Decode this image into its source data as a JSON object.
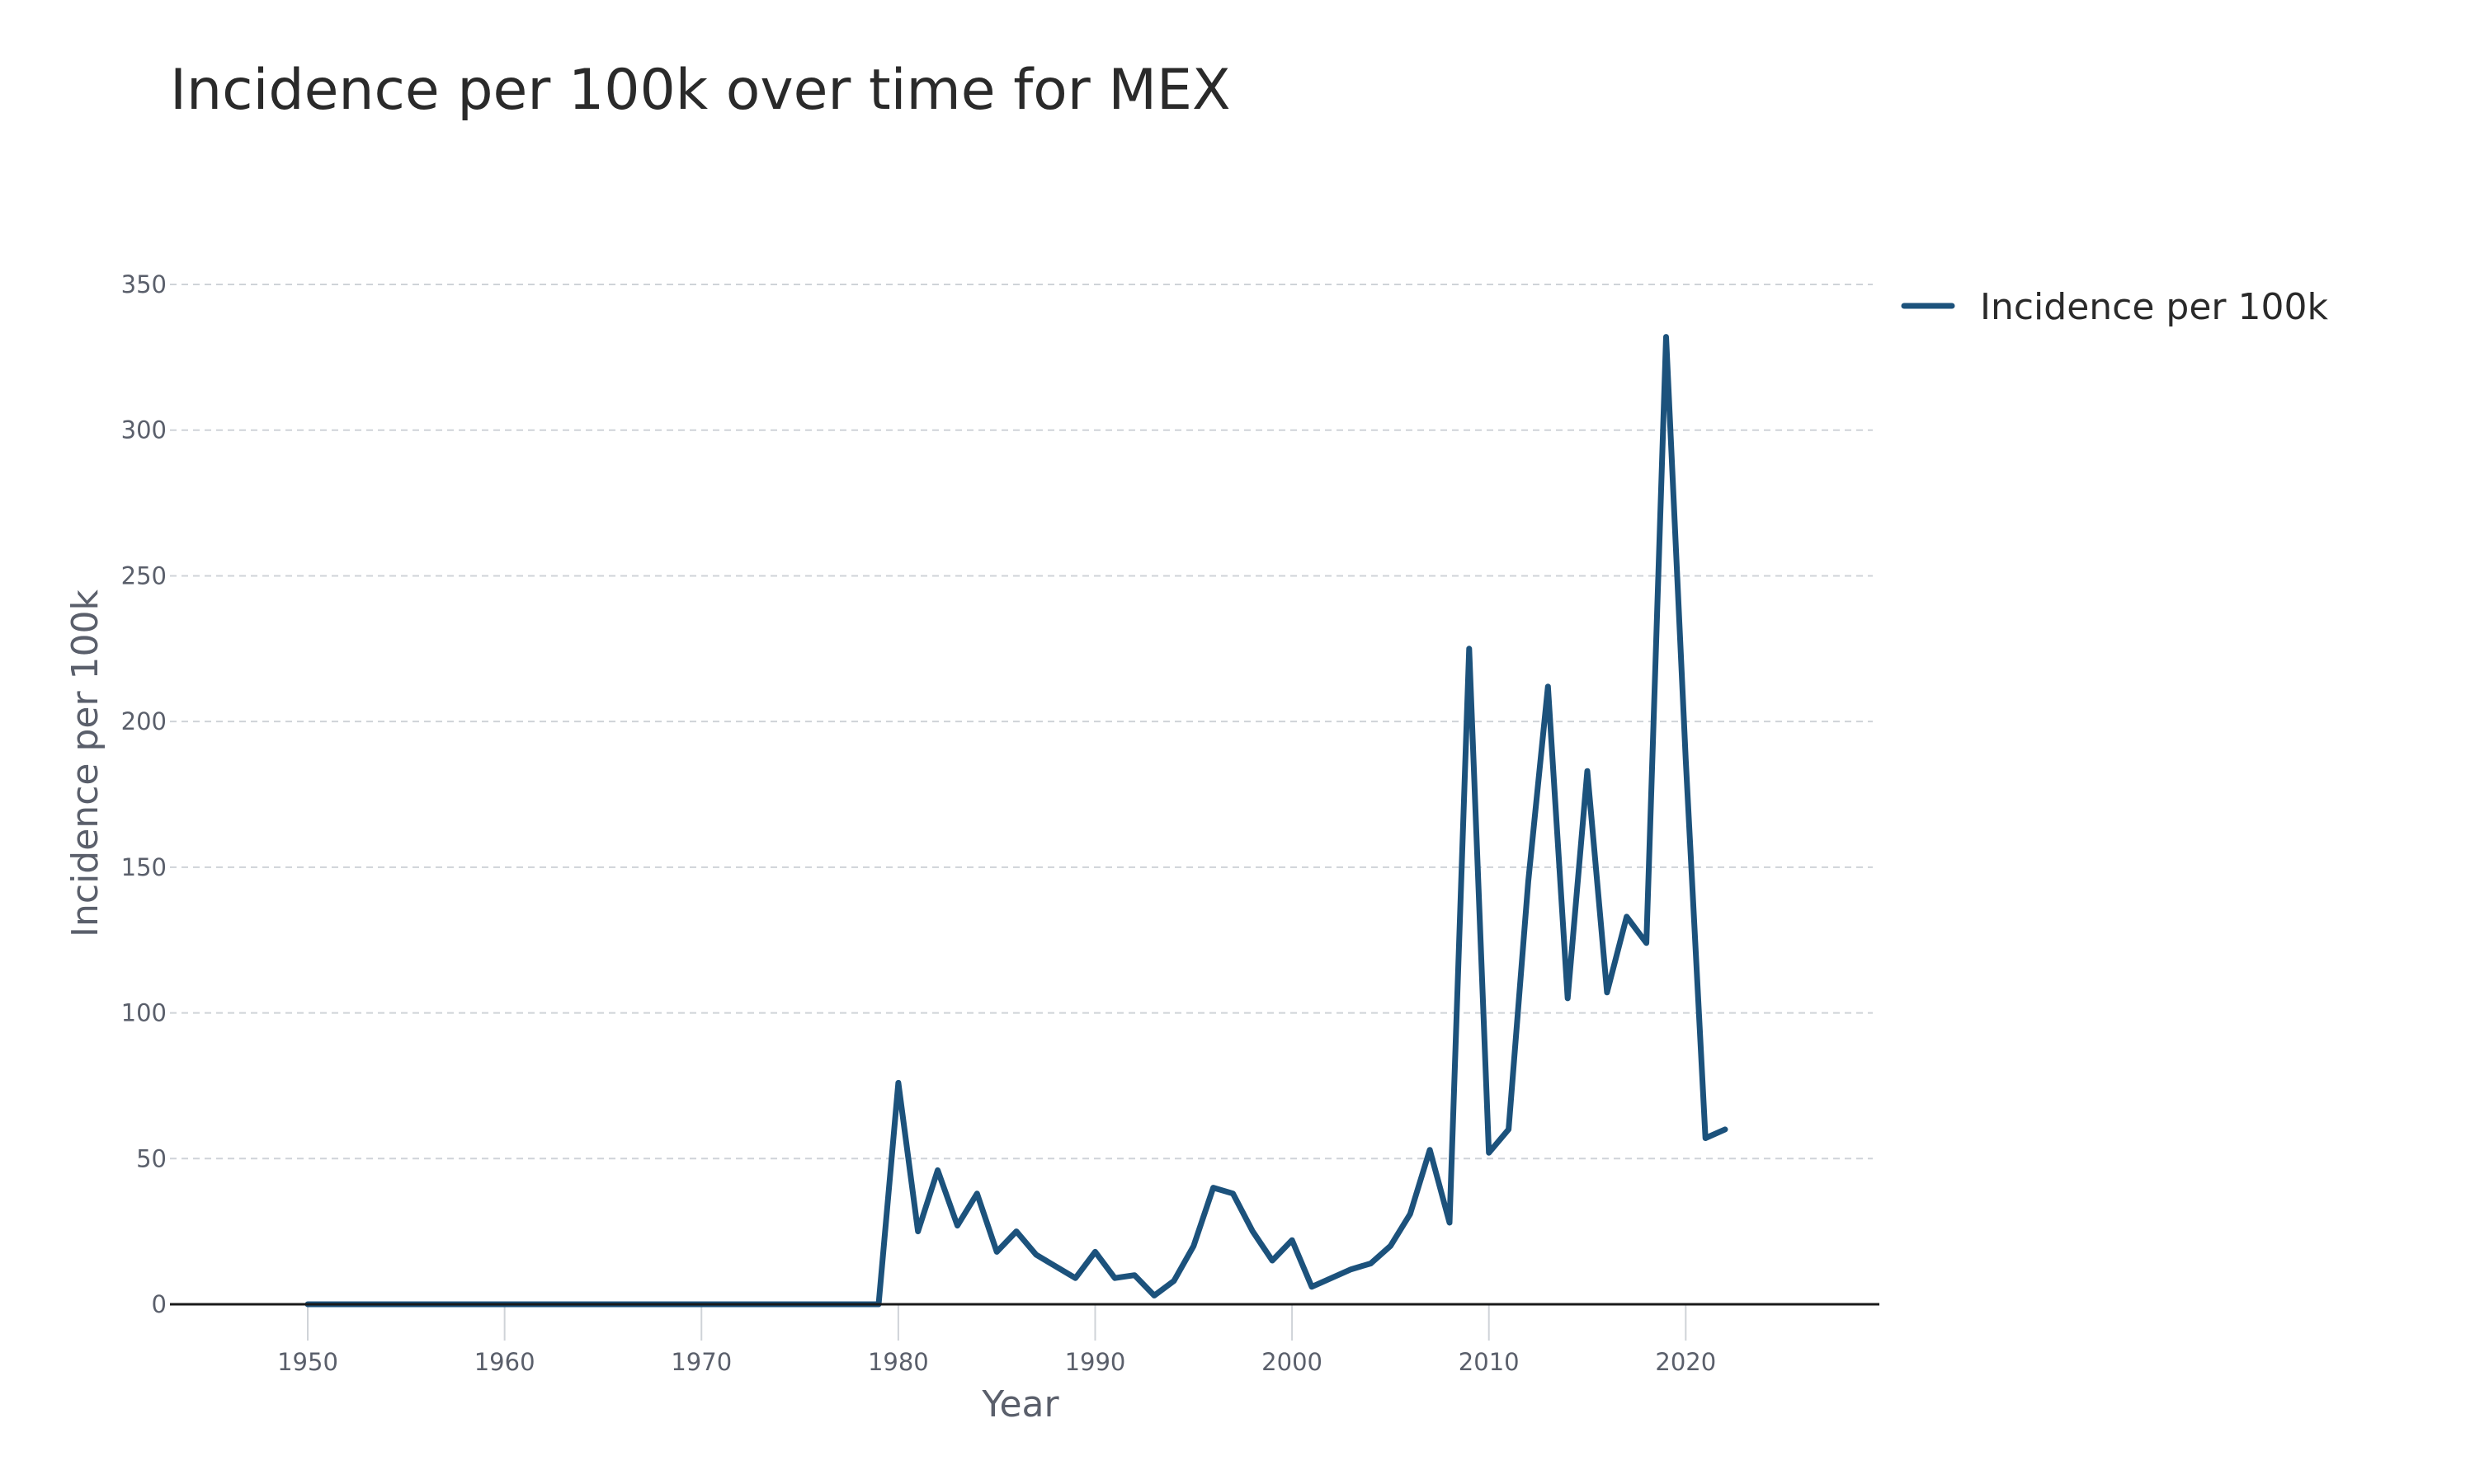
{
  "chart_data": {
    "type": "line",
    "title": "Incidence per 100k over time for MEX",
    "xlabel": "Year",
    "ylabel": "Incidence per 100k",
    "xlim": [
      1943,
      2029.5
    ],
    "ylim": [
      0,
      365
    ],
    "x_ticks": [
      1950,
      1960,
      1970,
      1980,
      1990,
      2000,
      2010,
      2020
    ],
    "y_ticks": [
      0,
      50,
      100,
      150,
      200,
      250,
      300,
      350
    ],
    "grid": "horizontal dashed",
    "legend_position": "top-right outside plot",
    "series": [
      {
        "name": "Incidence per 100k",
        "color": "#1c527c",
        "x": [
          1950,
          1951,
          1952,
          1953,
          1954,
          1955,
          1956,
          1957,
          1958,
          1959,
          1960,
          1961,
          1962,
          1963,
          1964,
          1965,
          1966,
          1967,
          1968,
          1969,
          1970,
          1971,
          1972,
          1973,
          1974,
          1975,
          1976,
          1977,
          1978,
          1979,
          1980,
          1981,
          1982,
          1983,
          1984,
          1985,
          1986,
          1987,
          1988,
          1989,
          1990,
          1991,
          1992,
          1993,
          1994,
          1995,
          1996,
          1997,
          1998,
          1999,
          2000,
          2001,
          2002,
          2003,
          2004,
          2005,
          2006,
          2007,
          2008,
          2009,
          2010,
          2011,
          2012,
          2013,
          2014,
          2015,
          2016,
          2017,
          2018,
          2019,
          2020,
          2021,
          2022
        ],
        "values": [
          0,
          0,
          0,
          0,
          0,
          0,
          0,
          0,
          0,
          0,
          0,
          0,
          0,
          0,
          0,
          0,
          0,
          0,
          0,
          0,
          0,
          0,
          0,
          0,
          0,
          0,
          0,
          0,
          0,
          0,
          76,
          25,
          46,
          27,
          38,
          18,
          25,
          17,
          13,
          9,
          18,
          9,
          10,
          3,
          8,
          20,
          40,
          38,
          25,
          15,
          22,
          6,
          9,
          12,
          14,
          20,
          31,
          53,
          28,
          225,
          52,
          60,
          145,
          212,
          105,
          183,
          107,
          133,
          124,
          332,
          187,
          57,
          60
        ]
      }
    ]
  }
}
